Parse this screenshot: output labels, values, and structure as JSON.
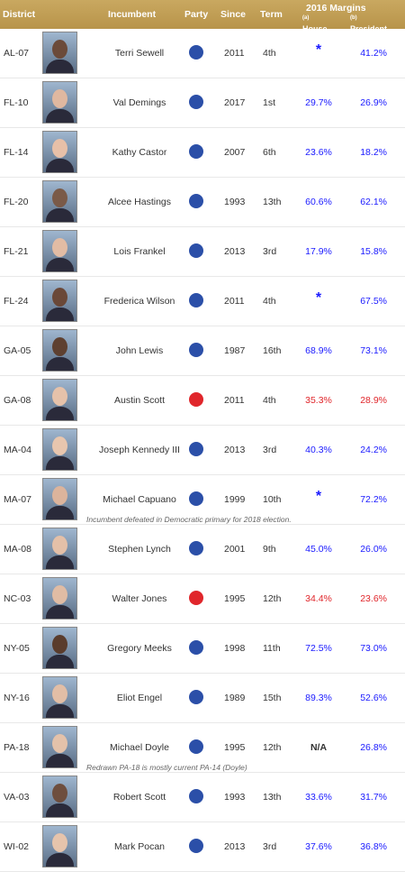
{
  "header": {
    "district": "District",
    "incumbent": "Incumbent",
    "party": "Party",
    "since": "Since",
    "term": "Term",
    "margins": "2016 Margins",
    "house": "House",
    "house_sup": "(a)",
    "president": "President",
    "president_sup": "(b)"
  },
  "colors": {
    "dem": "#2b4fa8",
    "rep": "#e0262b",
    "header": "#b8944a"
  },
  "rows": [
    {
      "district": "AL-07",
      "name": "Terri Sewell",
      "party": "dem",
      "since": "2011",
      "term": "4th",
      "house": "*",
      "president": "41.2%",
      "pres_class": "dem"
    },
    {
      "district": "FL-10",
      "name": "Val Demings",
      "party": "dem",
      "since": "2017",
      "term": "1st",
      "house": "29.7%",
      "house_class": "dem",
      "president": "26.9%",
      "pres_class": "dem"
    },
    {
      "district": "FL-14",
      "name": "Kathy Castor",
      "party": "dem",
      "since": "2007",
      "term": "6th",
      "house": "23.6%",
      "house_class": "dem",
      "president": "18.2%",
      "pres_class": "dem"
    },
    {
      "district": "FL-20",
      "name": "Alcee Hastings",
      "party": "dem",
      "since": "1993",
      "term": "13th",
      "house": "60.6%",
      "house_class": "dem",
      "president": "62.1%",
      "pres_class": "dem"
    },
    {
      "district": "FL-21",
      "name": "Lois Frankel",
      "party": "dem",
      "since": "2013",
      "term": "3rd",
      "house": "17.9%",
      "house_class": "dem",
      "president": "15.8%",
      "pres_class": "dem"
    },
    {
      "district": "FL-24",
      "name": "Frederica Wilson",
      "party": "dem",
      "since": "2011",
      "term": "4th",
      "house": "*",
      "president": "67.5%",
      "pres_class": "dem"
    },
    {
      "district": "GA-05",
      "name": "John Lewis",
      "party": "dem",
      "since": "1987",
      "term": "16th",
      "house": "68.9%",
      "house_class": "dem",
      "president": "73.1%",
      "pres_class": "dem"
    },
    {
      "district": "GA-08",
      "name": "Austin Scott",
      "party": "rep",
      "since": "2011",
      "term": "4th",
      "house": "35.3%",
      "house_class": "rep",
      "president": "28.9%",
      "pres_class": "rep"
    },
    {
      "district": "MA-04",
      "name": "Joseph Kennedy III",
      "party": "dem",
      "since": "2013",
      "term": "3rd",
      "house": "40.3%",
      "house_class": "dem",
      "president": "24.2%",
      "pres_class": "dem"
    },
    {
      "district": "MA-07",
      "name": "Michael Capuano",
      "party": "dem",
      "since": "1999",
      "term": "10th",
      "house": "*",
      "president": "72.2%",
      "pres_class": "dem",
      "note": "Incumbent defeated in Democratic primary for 2018 election."
    },
    {
      "district": "MA-08",
      "name": "Stephen Lynch",
      "party": "dem",
      "since": "2001",
      "term": "9th",
      "house": "45.0%",
      "house_class": "dem",
      "president": "26.0%",
      "pres_class": "dem"
    },
    {
      "district": "NC-03",
      "name": "Walter Jones",
      "party": "rep",
      "since": "1995",
      "term": "12th",
      "house": "34.4%",
      "house_class": "rep",
      "president": "23.6%",
      "pres_class": "rep"
    },
    {
      "district": "NY-05",
      "name": "Gregory Meeks",
      "party": "dem",
      "since": "1998",
      "term": "11th",
      "house": "72.5%",
      "house_class": "dem",
      "president": "73.0%",
      "pres_class": "dem"
    },
    {
      "district": "NY-16",
      "name": "Eliot Engel",
      "party": "dem",
      "since": "1989",
      "term": "15th",
      "house": "89.3%",
      "house_class": "dem",
      "president": "52.6%",
      "pres_class": "dem"
    },
    {
      "district": "PA-18",
      "name": "Michael Doyle",
      "party": "dem",
      "since": "1995",
      "term": "12th",
      "house": "N/A",
      "house_class": "na",
      "president": "26.8%",
      "pres_class": "dem",
      "note": "Redrawn PA-18 is mostly current PA-14 (Doyle)"
    },
    {
      "district": "VA-03",
      "name": "Robert Scott",
      "party": "dem",
      "since": "1993",
      "term": "13th",
      "house": "33.6%",
      "house_class": "dem",
      "president": "31.7%",
      "pres_class": "dem"
    },
    {
      "district": "WI-02",
      "name": "Mark Pocan",
      "party": "dem",
      "since": "2013",
      "term": "3rd",
      "house": "37.6%",
      "house_class": "dem",
      "president": "36.8%",
      "pres_class": "dem"
    }
  ]
}
